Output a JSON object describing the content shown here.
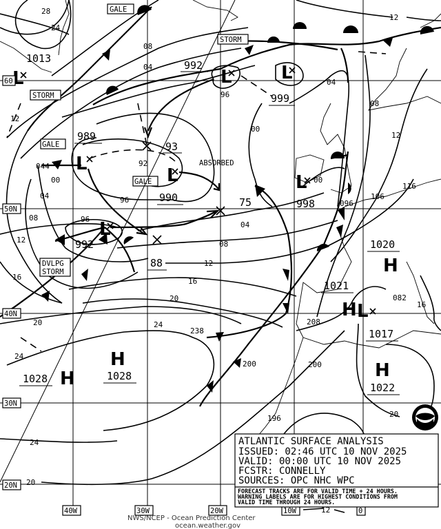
{
  "title_box": {
    "title": "ATLANTIC SURFACE ANALYSIS",
    "issued": "ISSUED: 02:46 UTC 10 NOV 2025",
    "valid": "VALID:  00:00 UTC 10 NOV 2025",
    "forecaster": "FCSTR:  CONNELLY",
    "sources": "SOURCES: OPC NHC WPC",
    "note_lines": [
      "FORECAST TRACKS ARE FOR VALID TIME + 24 HOURS.",
      "WARNING LABELS ARE FOR HIGHEST CONDITIONS FROM",
      "VALID TIME THROUGH 24 HOURS."
    ]
  },
  "footer": {
    "line1": "NWS/NCEP - Ocean Prediction Center",
    "line2": "ocean.weather.gov"
  },
  "logo": {
    "name": "noaa-logo",
    "text": "NOAA"
  },
  "grid_labels": {
    "lat": [
      "60",
      "50N",
      "40N",
      "30N",
      "20N"
    ],
    "lon": [
      "40W",
      "30W",
      "20W",
      "10W",
      "0"
    ]
  },
  "warnings": [
    "GALE",
    "STORM",
    "STORM",
    "GALE",
    "GALE",
    "DVLPG",
    "STORM"
  ],
  "annotation": "ABSORBED",
  "centers": [
    {
      "type": "L",
      "pressure": "1013"
    },
    {
      "type": "L",
      "pressure": "989"
    },
    {
      "type": "L",
      "pressure": "990"
    },
    {
      "type": "L",
      "pressure": "992"
    },
    {
      "type": "L",
      "pressure": "992"
    },
    {
      "type": "L",
      "pressure": "999"
    },
    {
      "type": "L",
      "pressure": "998"
    },
    {
      "type": "H",
      "pressure": "1020"
    },
    {
      "type": "H",
      "pressure": "1021"
    },
    {
      "type": "L",
      "pressure": "1017"
    },
    {
      "type": "H",
      "pressure": "1022"
    },
    {
      "type": "H",
      "pressure": "1028"
    },
    {
      "type": "H",
      "pressure": "1028"
    }
  ],
  "forecast_positions": [
    "93",
    "75",
    "88"
  ],
  "isobar_labels": [
    "28",
    "24",
    "08",
    "04",
    "12",
    "044",
    "00",
    "04",
    "08",
    "12",
    "16",
    "92",
    "96",
    "96",
    "96",
    "00",
    "04",
    "08",
    "12",
    "12",
    "116",
    "106",
    "096",
    "04",
    "08",
    "12",
    "16",
    "20",
    "20",
    "24",
    "238",
    "24",
    "200",
    "208",
    "200",
    "196",
    "20",
    "16",
    "24",
    "20",
    "12",
    "082",
    "00"
  ]
}
